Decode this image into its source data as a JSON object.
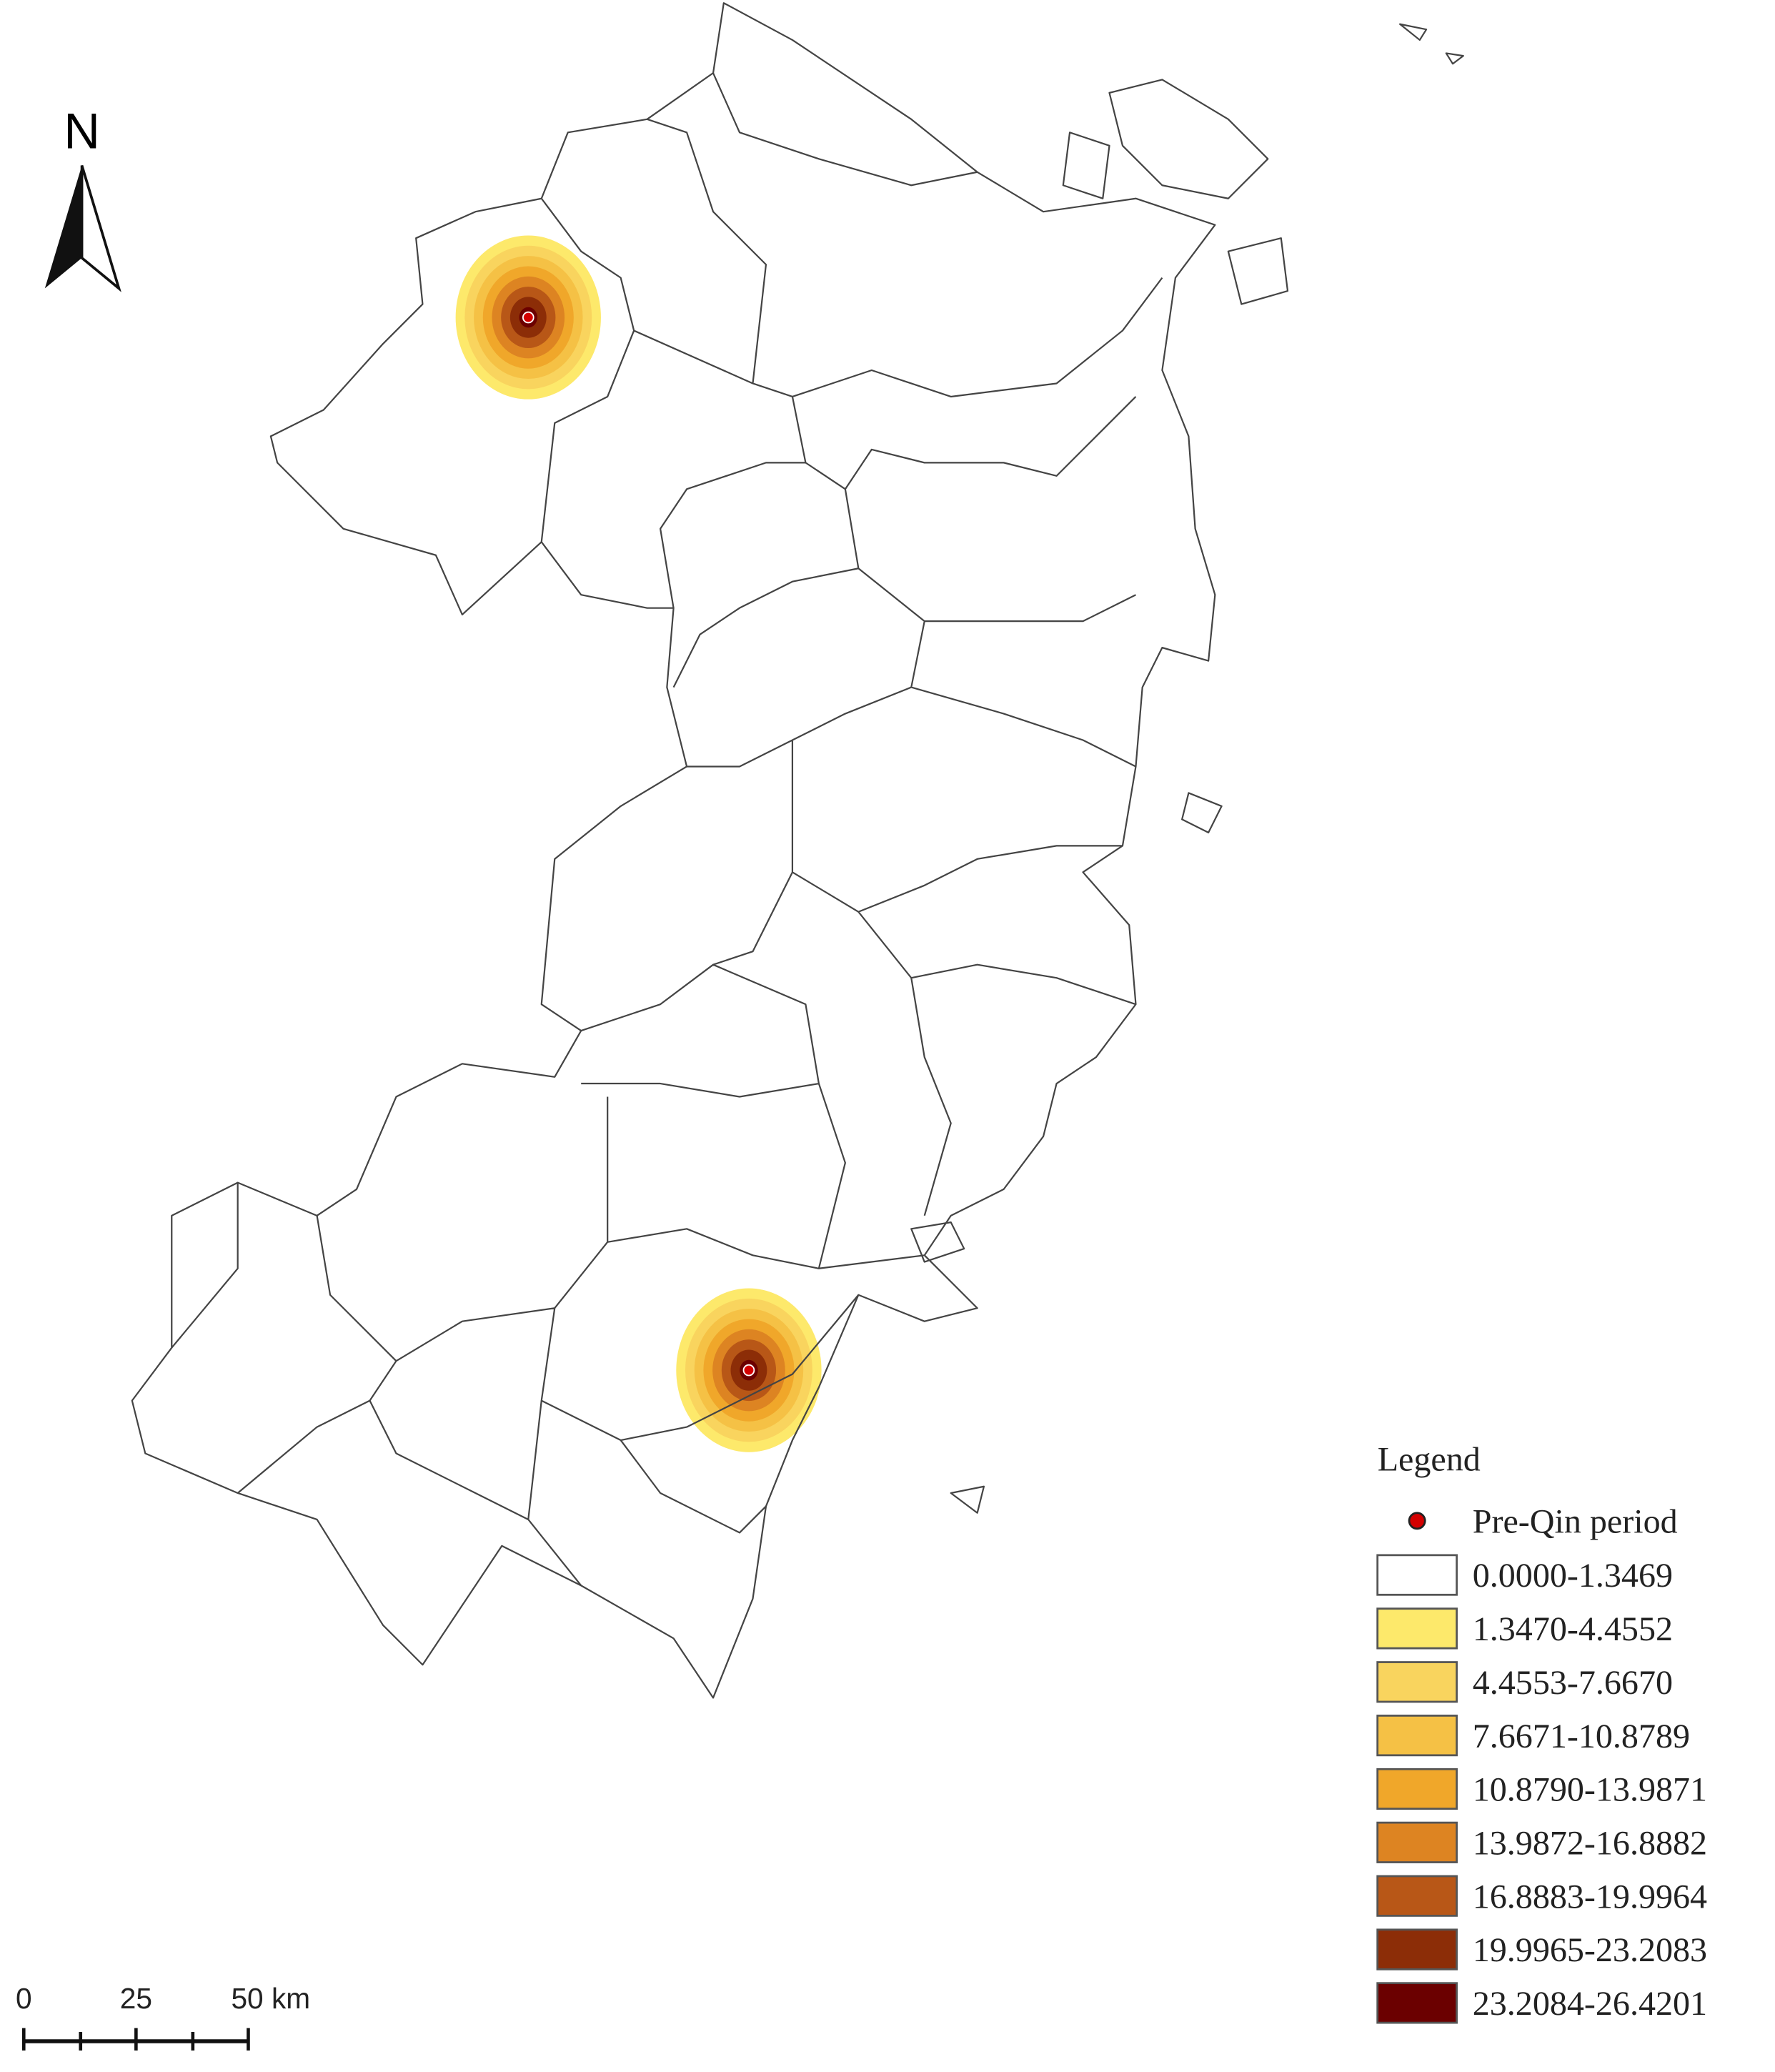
{
  "north_arrow": {
    "label": "N"
  },
  "legend": {
    "title": "Legend",
    "point": {
      "label": "Pre-Qin period",
      "color": "#d40000"
    },
    "classes": [
      {
        "label": "0.0000-1.3469",
        "color": "#ffffff"
      },
      {
        "label": "1.3470-4.4552",
        "color": "#fde96b"
      },
      {
        "label": "4.4553-7.6670",
        "color": "#f9d45e"
      },
      {
        "label": "7.6671-10.8789",
        "color": "#f5c145"
      },
      {
        "label": "10.8790-13.9871",
        "color": "#f0a72a"
      },
      {
        "label": "13.9872-16.8882",
        "color": "#dd8422"
      },
      {
        "label": "16.8883-19.9964",
        "color": "#b85717"
      },
      {
        "label": "19.9965-23.2083",
        "color": "#8c2d07"
      },
      {
        "label": "23.2084-26.4201",
        "color": "#6b0000"
      }
    ]
  },
  "scale_bar": {
    "labels": [
      "0",
      "25",
      "50 km"
    ]
  }
}
